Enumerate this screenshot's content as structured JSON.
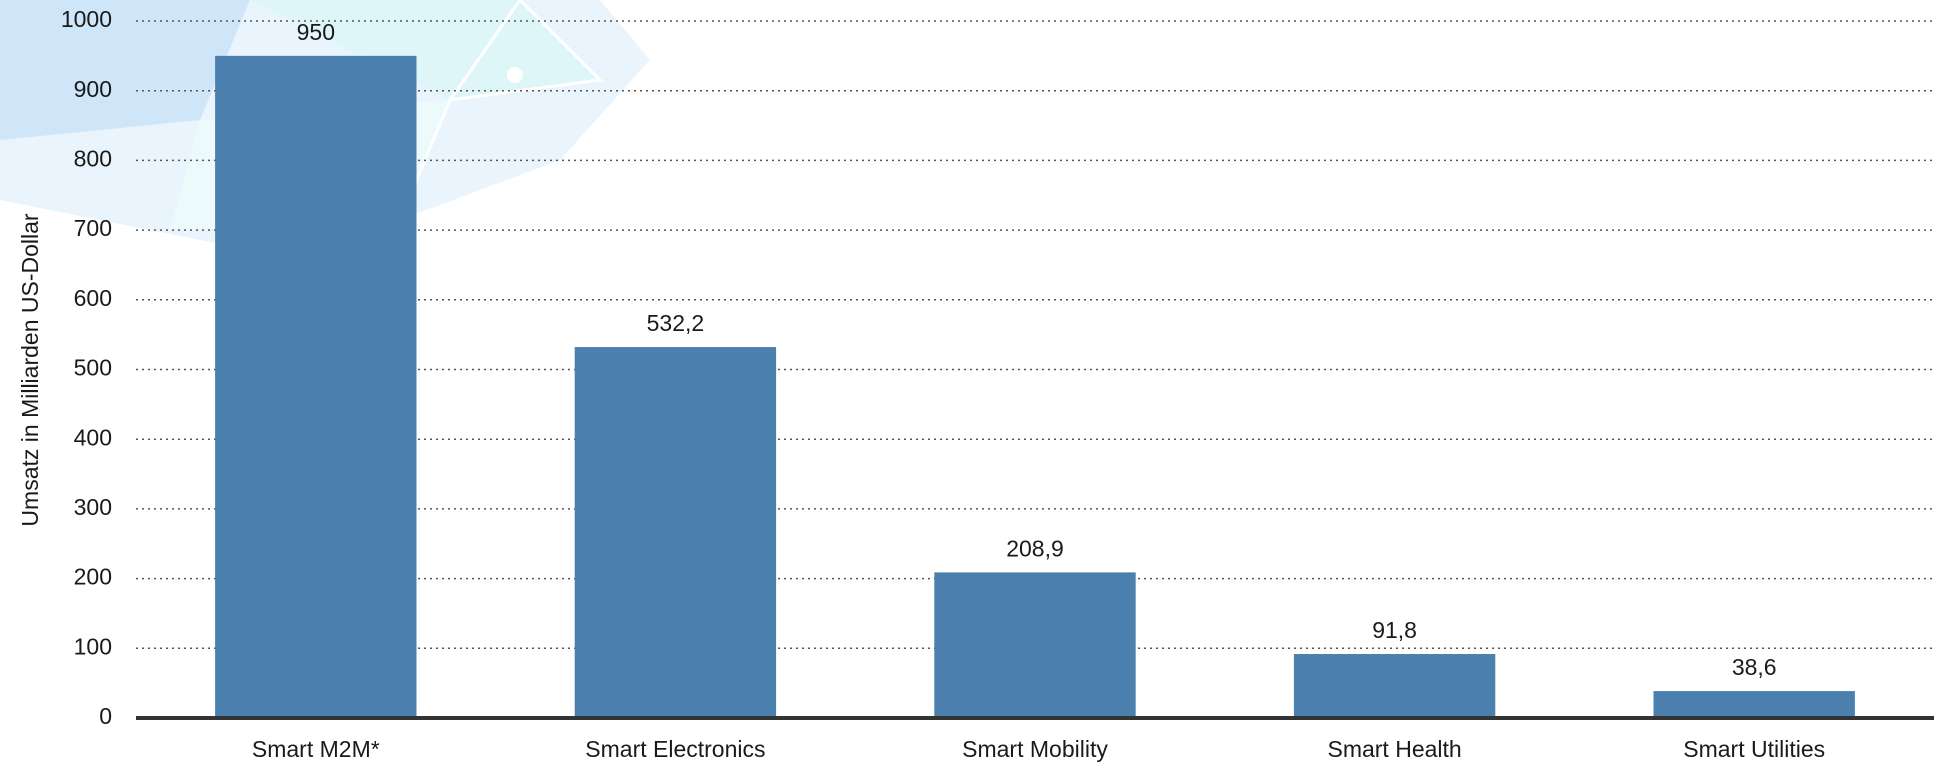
{
  "chart_data": {
    "type": "bar",
    "y_label": "Umsatz in Milliarden US-Dollar",
    "categories": [
      "Smart M2M*",
      "Smart Electronics",
      "Smart Mobility",
      "Smart Health",
      "Smart Utilities"
    ],
    "values": [
      950,
      532.2,
      208.9,
      91.8,
      38.6
    ],
    "value_labels": [
      "950",
      "532,2",
      "208,9",
      "91,8",
      "38,6"
    ],
    "color": "#4a7fae",
    "ylim": [
      0,
      1000
    ],
    "yticks": [
      0,
      100,
      200,
      300,
      400,
      500,
      600,
      700,
      800,
      900,
      1000
    ],
    "grid": true
  }
}
